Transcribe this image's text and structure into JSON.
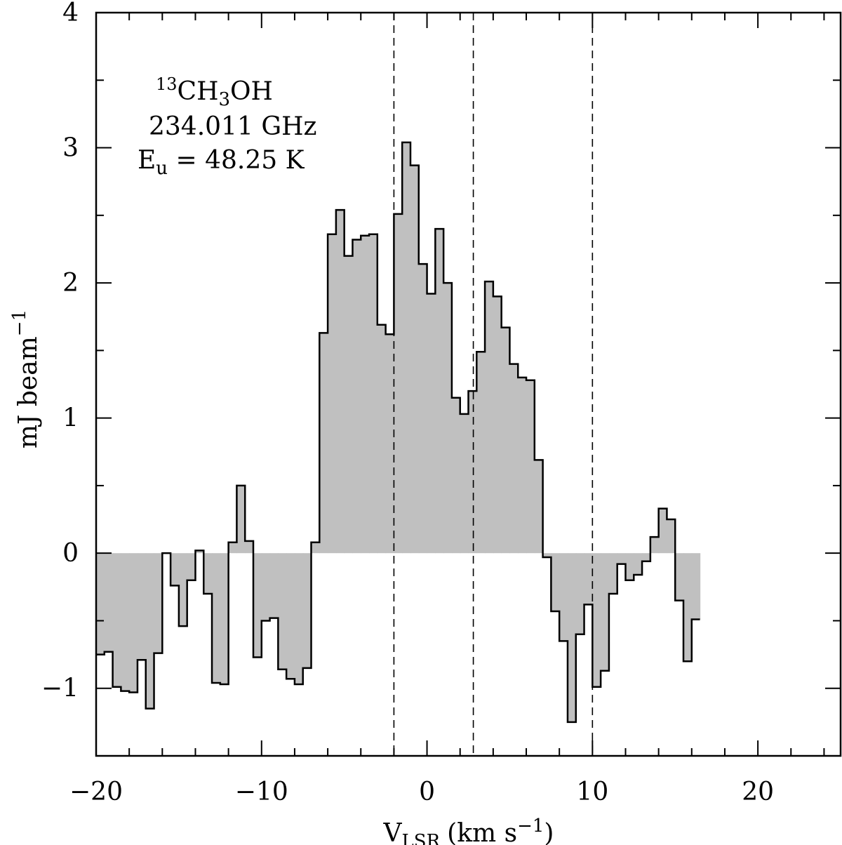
{
  "chart_data": {
    "type": "histogram-step",
    "x_axis": {
      "range": [
        -20,
        25
      ],
      "ticks": [
        -20,
        -10,
        0,
        10,
        20
      ],
      "tick_labels": [
        "−20",
        "−10",
        "0",
        "10",
        "20"
      ],
      "label_main": "V",
      "label_sub": "LSR",
      "label_rest": "(km s",
      "label_sup": "−1",
      "label_close": ")"
    },
    "y_axis": {
      "range": [
        -1.5,
        4
      ],
      "ticks": [
        -1,
        0,
        1,
        2,
        3,
        4
      ],
      "tick_labels": [
        "−1",
        "0",
        "1",
        "2",
        "3",
        "4"
      ],
      "label_main": "mJ beam",
      "label_sup": "−1"
    },
    "annotation": {
      "line1_sup": "13",
      "line1_a": "CH",
      "line1_sub": "3",
      "line1_b": "OH",
      "line2": "234.011 GHz",
      "line3_a": "E",
      "line3_sub": "u",
      "line3_b": " = 48.25 K"
    },
    "vlines": [
      -2,
      2.8,
      10
    ],
    "fill_color": "#c0c0c0",
    "channel_width": 0.5,
    "x_start": -20,
    "values": [
      -0.75,
      -0.73,
      -0.99,
      -1.02,
      -1.03,
      -0.79,
      -1.15,
      -0.74,
      0.0,
      -0.24,
      -0.54,
      -0.2,
      0.02,
      -0.3,
      -0.96,
      -0.97,
      0.08,
      0.5,
      0.09,
      -0.77,
      -0.5,
      -0.48,
      -0.86,
      -0.93,
      -0.97,
      -0.85,
      0.08,
      1.63,
      2.36,
      2.54,
      2.2,
      2.32,
      2.35,
      2.36,
      1.69,
      1.62,
      2.51,
      3.04,
      2.87,
      2.14,
      1.92,
      2.4,
      2.0,
      1.15,
      1.03,
      1.2,
      1.49,
      2.01,
      1.9,
      1.67,
      1.4,
      1.3,
      1.28,
      0.69,
      -0.03,
      -0.43,
      -0.65,
      -1.25,
      -0.6,
      -0.38,
      -0.99,
      -0.87,
      -0.3,
      -0.08,
      -0.2,
      -0.16,
      -0.06,
      0.12,
      0.33,
      0.25,
      -0.35,
      -0.8,
      -0.49
    ]
  }
}
